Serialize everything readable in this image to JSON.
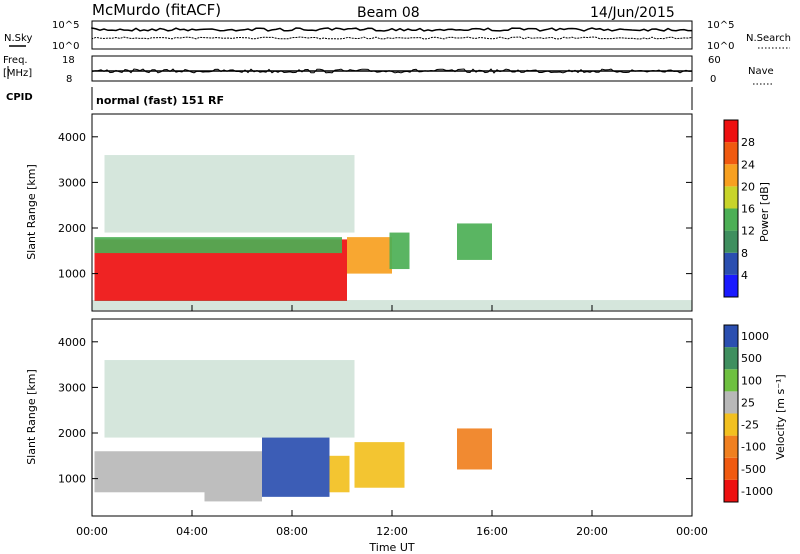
{
  "header": {
    "station": "McMurdo (fitACF)",
    "beam": "Beam 08",
    "date": "14/Jun/2015"
  },
  "status_panels": {
    "nsky_label": "N.Sky",
    "nsearch_label": "N.Search",
    "freq_label": "Freq.",
    "freq_unit": "[MHz]",
    "nave_label": "Nave",
    "cpid_label": "CPID",
    "cpid_value": "normal (fast) 151 RF",
    "noise_ticks_left": [
      "10^5",
      "10^0"
    ],
    "noise_ticks_right": [
      "10^5",
      "10^0"
    ],
    "freq_ticks_left": [
      "18",
      "8"
    ],
    "nave_ticks_right": [
      "60",
      "0"
    ]
  },
  "x_axis": {
    "label": "Time UT",
    "ticks": [
      "00:00",
      "04:00",
      "08:00",
      "12:00",
      "16:00",
      "20:00",
      "00:00"
    ],
    "range_hours": [
      0,
      24
    ]
  },
  "colors": {
    "power": [
      "#1a1aff",
      "#2b4fb0",
      "#3f8f5f",
      "#4caf55",
      "#c8d42a",
      "#f7a020",
      "#f05a10",
      "#ee1010"
    ],
    "velocity": [
      "#ee1010",
      "#f05a10",
      "#f08020",
      "#f2c020",
      "#b8b8b8",
      "#6ec040",
      "#3f8f5f",
      "#2b4fb0"
    ]
  },
  "chart_data": [
    {
      "type": "heatmap",
      "panel": "power",
      "ylabel": "Slant Range [km]",
      "yticks": [
        1000,
        2000,
        3000,
        4000
      ],
      "ylim": [
        180,
        4500
      ],
      "xlim": [
        0,
        24
      ],
      "colorbar": {
        "label": "Power [dB]",
        "ticks": [
          "4",
          "8",
          "12",
          "16",
          "20",
          "24",
          "28"
        ],
        "range": [
          0,
          30
        ]
      },
      "regions": [
        {
          "t": [
            0.1,
            10.2
          ],
          "r": [
            400,
            1750
          ],
          "value": 27
        },
        {
          "t": [
            0.1,
            10.0
          ],
          "r": [
            1450,
            1800
          ],
          "value": 13
        },
        {
          "t": [
            10.2,
            12.0
          ],
          "r": [
            1000,
            1800
          ],
          "value": 22
        },
        {
          "t": [
            11.9,
            12.7
          ],
          "r": [
            1100,
            1900
          ],
          "value": 12
        },
        {
          "t": [
            14.6,
            16.0
          ],
          "r": [
            1300,
            2100
          ],
          "value": 12
        },
        {
          "t": [
            0.5,
            10.5
          ],
          "r": [
            1900,
            3600
          ],
          "value": 10,
          "sparse": true
        },
        {
          "t": [
            0.0,
            24.0
          ],
          "r": [
            200,
            420
          ],
          "value": 8,
          "sparse": true
        }
      ]
    },
    {
      "type": "heatmap",
      "panel": "velocity",
      "ylabel": "Slant Range [km]",
      "yticks": [
        1000,
        2000,
        3000,
        4000
      ],
      "ylim": [
        180,
        4500
      ],
      "xlim": [
        0,
        24
      ],
      "colorbar": {
        "label": "Velocity [m s⁻¹]",
        "ticks": [
          "-1000",
          "-500",
          "-100",
          "-25",
          "25",
          "100",
          "500",
          "1000"
        ],
        "range": [
          -1000,
          1000
        ]
      },
      "regions": [
        {
          "t": [
            0.1,
            4.5
          ],
          "r": [
            700,
            1600
          ],
          "value": 150
        },
        {
          "t": [
            4.5,
            6.8
          ],
          "r": [
            500,
            1600
          ],
          "value": 200
        },
        {
          "t": [
            6.8,
            9.5
          ],
          "r": [
            600,
            1900
          ],
          "value": 900
        },
        {
          "t": [
            9.5,
            10.3
          ],
          "r": [
            700,
            1500
          ],
          "value": -150
        },
        {
          "t": [
            10.5,
            12.5
          ],
          "r": [
            800,
            1800
          ],
          "value": -200
        },
        {
          "t": [
            14.6,
            16.0
          ],
          "r": [
            1200,
            2100
          ],
          "value": -300
        },
        {
          "t": [
            0.5,
            10.5
          ],
          "r": [
            1900,
            3600
          ],
          "value": 600,
          "sparse": true
        }
      ]
    }
  ]
}
